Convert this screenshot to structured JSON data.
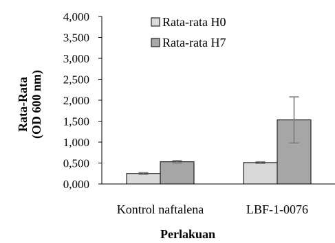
{
  "chart_data": {
    "type": "bar",
    "categories": [
      "Kontrol naftalena",
      "LBF-1-0076"
    ],
    "series": [
      {
        "name": "Rata-rata H0",
        "values": [
          0.25,
          0.51
        ],
        "error": [
          0.02,
          0.02
        ],
        "color": "#d9d9d9"
      },
      {
        "name": "Rata-rata H7",
        "values": [
          0.53,
          1.53
        ],
        "error": [
          0.03,
          0.55
        ],
        "color": "#a6a6a6"
      }
    ],
    "xlabel": "Perlakuan",
    "ylabel_line1": "Rata-Rata",
    "ylabel_line2": "(OD 600 nm)",
    "ylim": [
      0,
      4
    ],
    "yticks": [
      "0,000",
      "0,500",
      "1,000",
      "1,500",
      "2,000",
      "2,500",
      "3,000",
      "3,500",
      "4,000"
    ],
    "ytick_values": [
      0,
      0.5,
      1,
      1.5,
      2,
      2.5,
      3,
      3.5,
      4
    ],
    "grid": false,
    "legend_position": "top-center",
    "error_bar_color": "#7f7f7f"
  }
}
